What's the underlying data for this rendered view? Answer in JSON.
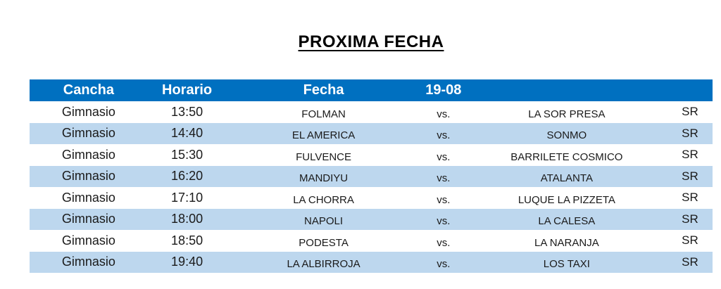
{
  "title": "PROXIMA FECHA",
  "table": {
    "headers": {
      "cancha": "Cancha",
      "horario": "Horario",
      "fecha": "Fecha",
      "date": "19-08",
      "away": "",
      "ref": ""
    },
    "rows": [
      {
        "cancha": "Gimnasio",
        "horario": "13:50",
        "home": "FOLMAN",
        "vs": "vs.",
        "away": "LA SOR PRESA",
        "ref": "SR"
      },
      {
        "cancha": "Gimnasio",
        "horario": "14:40",
        "home": "EL AMERICA",
        "vs": "vs.",
        "away": "SONMO",
        "ref": "SR"
      },
      {
        "cancha": "Gimnasio",
        "horario": "15:30",
        "home": "FULVENCE",
        "vs": "vs.",
        "away": "BARRILETE COSMICO",
        "ref": "SR"
      },
      {
        "cancha": "Gimnasio",
        "horario": "16:20",
        "home": "MANDIYU",
        "vs": "vs.",
        "away": "ATALANTA",
        "ref": "SR"
      },
      {
        "cancha": "Gimnasio",
        "horario": "17:10",
        "home": "LA CHORRA",
        "vs": "vs.",
        "away": "LUQUE LA PIZZETA",
        "ref": "SR"
      },
      {
        "cancha": "Gimnasio",
        "horario": "18:00",
        "home": "NAPOLI",
        "vs": "vs.",
        "away": "LA CALESA",
        "ref": "SR"
      },
      {
        "cancha": "Gimnasio",
        "horario": "18:50",
        "home": "PODESTA",
        "vs": "vs.",
        "away": "LA NARANJA",
        "ref": "SR"
      },
      {
        "cancha": "Gimnasio",
        "horario": "19:40",
        "home": "LA ALBIRROJA",
        "vs": "vs.",
        "away": "LOS TAXI",
        "ref": "SR"
      }
    ]
  },
  "colors": {
    "header_bg": "#0070C0",
    "header_text": "#FFFFFF",
    "stripe_bg": "#BDD7EE",
    "row_bg": "#FFFFFF",
    "text": "#1A1A1A",
    "title_text": "#000000"
  }
}
